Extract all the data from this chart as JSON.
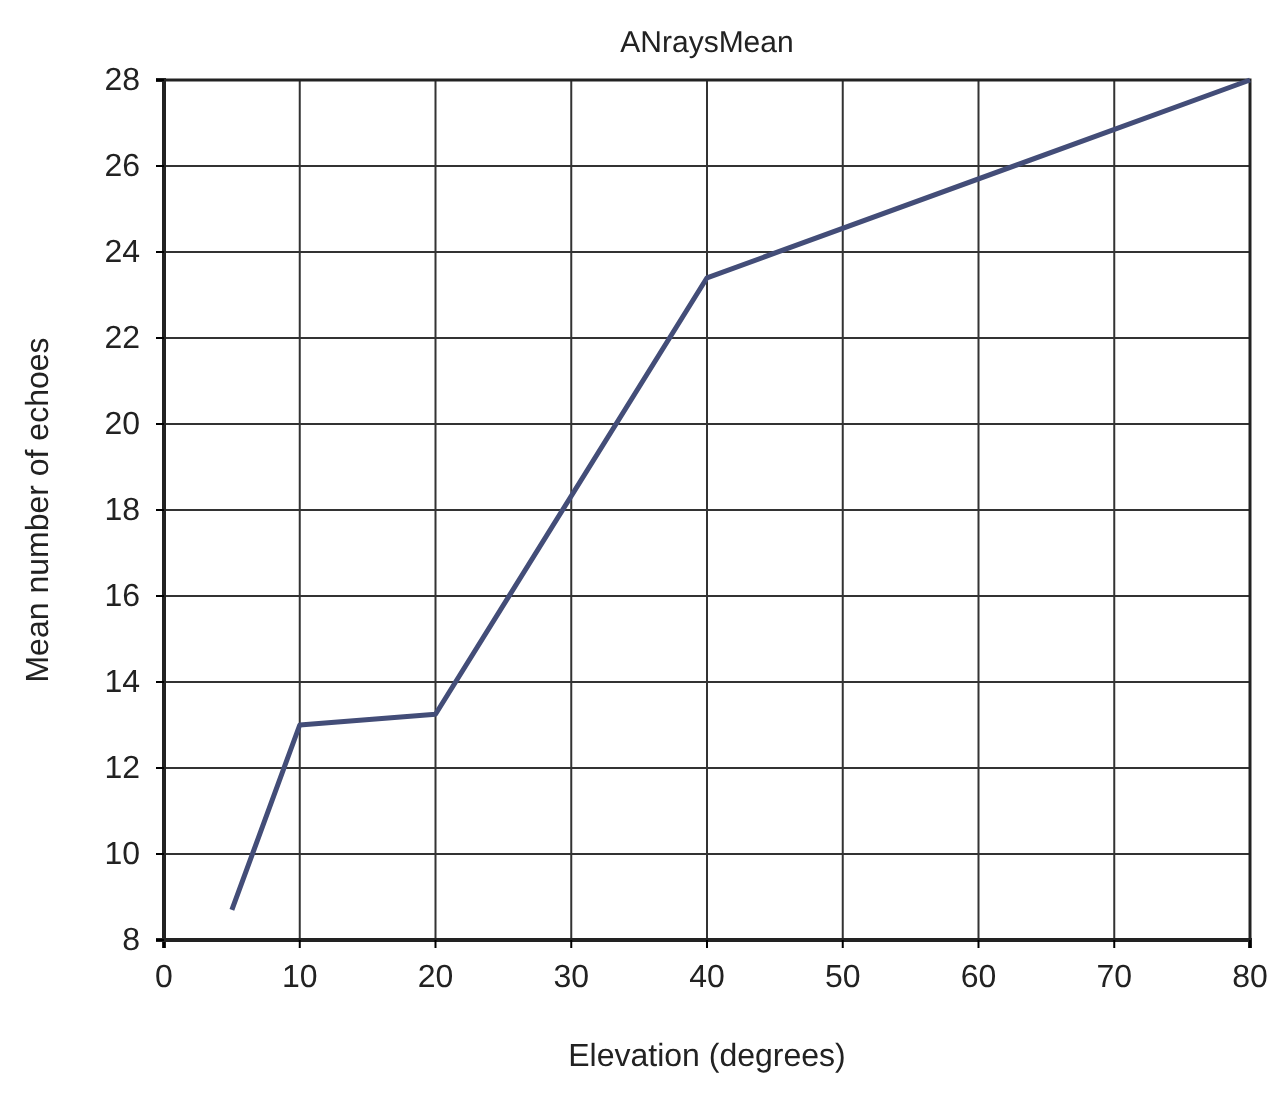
{
  "chart_data": {
    "type": "line",
    "title": "ANraysMean",
    "xlabel": "Elevation (degrees)",
    "ylabel": "Mean number of echoes",
    "x": [
      5,
      10,
      20,
      40,
      80
    ],
    "series": [
      {
        "color": "#434d78",
        "values": [
          8.7,
          13.0,
          13.25,
          23.4,
          28
        ]
      }
    ],
    "xlim": [
      0,
      80
    ],
    "xticks": [
      0,
      10,
      20,
      30,
      40,
      50,
      60,
      70,
      80
    ],
    "ylim": [
      8,
      28
    ],
    "yticks": [
      8,
      10,
      12,
      14,
      16,
      18,
      20,
      22,
      24,
      26,
      28
    ],
    "grid": true,
    "marker": "none",
    "line_style": "solid"
  }
}
